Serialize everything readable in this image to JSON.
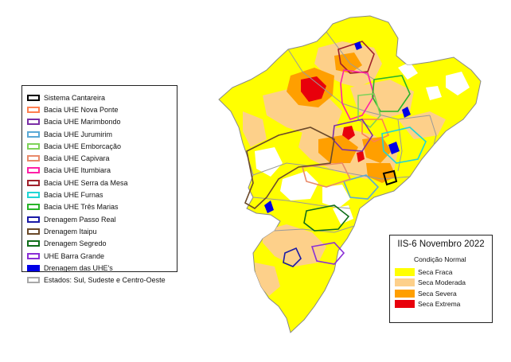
{
  "map": {
    "colors": {
      "seca_fraca": "#ffff00",
      "seca_moderada": "#fdd08a",
      "seca_severa": "#ff9f00",
      "seca_extrema": "#e8000b",
      "normal": "#ffffff",
      "borders": "#9a9a9a"
    }
  },
  "legend_basins": {
    "items": [
      {
        "label": "Sistema Cantareira",
        "color": "#000000"
      },
      {
        "label": "Bacia UHE Nova Ponte",
        "color": "#ff7f50"
      },
      {
        "label": "Bacia UHE Marimbondo",
        "color": "#7b2fa6"
      },
      {
        "label": "Bacia UHE Jurumirim",
        "color": "#5aa9d6"
      },
      {
        "label": "Bacia UHE Emborcação",
        "color": "#7fd35a"
      },
      {
        "label": "Bacia UHE Capivara",
        "color": "#e98a6a"
      },
      {
        "label": "Bacia UHE Itumbiara",
        "color": "#ff1fa6"
      },
      {
        "label": "Bacia UHE Serra da Mesa",
        "color": "#a0202a"
      },
      {
        "label": "Bacia UHE Furnas",
        "color": "#1fd6d6"
      },
      {
        "label": "Bacia UHE Três Marias",
        "color": "#28b428"
      },
      {
        "label": "Drenagem Passo Real",
        "color": "#1a1aa6"
      },
      {
        "label": "Drenagem Itaipu",
        "color": "#6b4a2a"
      },
      {
        "label": "Drenagem Segredo",
        "color": "#0f6e1a"
      },
      {
        "label": "UHE Barra Grande",
        "color": "#8a2fd6"
      },
      {
        "label": "Drenagem das UHE's",
        "color": "#0000e6",
        "filled": true
      },
      {
        "label": "Estados: Sul, Sudeste e Centro-Oeste",
        "color": "#a8a8a8"
      }
    ]
  },
  "legend_drought": {
    "title": "IIS-6 Novembro 2022",
    "subtitle": "Condição Normal",
    "items": [
      {
        "label": "Seca Fraca",
        "color": "#ffff00"
      },
      {
        "label": "Seca Moderada",
        "color": "#fdd08a"
      },
      {
        "label": "Seca Severa",
        "color": "#ff9f00"
      },
      {
        "label": "Seca Extrema",
        "color": "#e8000b"
      }
    ]
  }
}
